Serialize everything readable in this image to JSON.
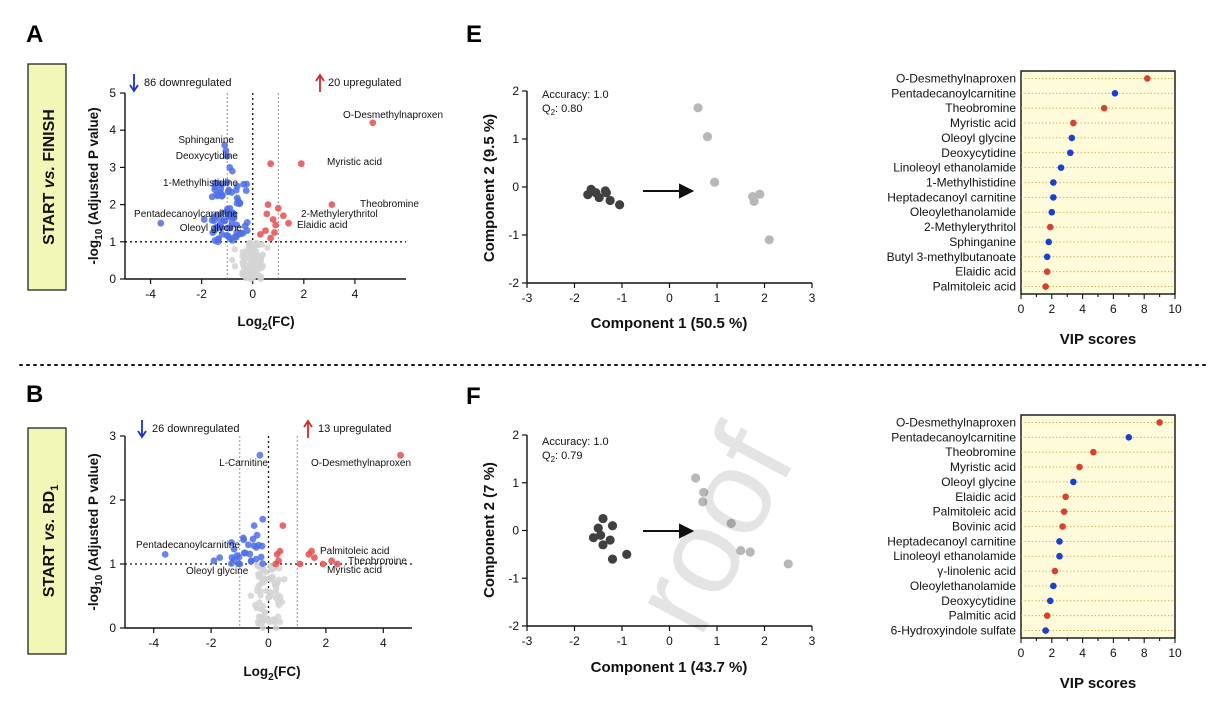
{
  "panels": {
    "A": "A",
    "B": "B",
    "E": "E",
    "F": "F"
  },
  "comparisons": [
    {
      "pre": "START ",
      "vs": "vs.",
      "post": " FINISH",
      "sub": ""
    },
    {
      "pre": "START ",
      "vs": "vs.",
      "post": " RD",
      "sub": "1"
    }
  ],
  "colors": {
    "down": "#4f6fe8",
    "up": "#e54e4e",
    "nonsig": "#d3d3d3",
    "group1": "#404040",
    "group2": "#b8b8b8",
    "vip_red": "#d8402f",
    "vip_blue": "#1b3fcf",
    "vip_bg": "#fdfbd9",
    "label_bg": "#f2f7b7"
  },
  "chart_data": [
    {
      "panel": "A",
      "type": "scatter",
      "xlabel_pre": "Log",
      "xlabel_sub": "2",
      "xlabel_post": "(FC)",
      "ylabel_pre": "-log",
      "ylabel_sub": "10",
      "ylabel_post": " (Adjusted P value)",
      "xlim": [
        -5,
        6
      ],
      "ylim": [
        0,
        5
      ],
      "xticks": [
        -4,
        -2,
        0,
        2,
        4
      ],
      "yticks": [
        0,
        1,
        2,
        3,
        4,
        5
      ],
      "down_label": "86 downregulated",
      "up_label": "20 upregulated",
      "annotations": [
        {
          "text": "O-Desmethylnaproxen",
          "x": 4.7,
          "y": 4.2
        },
        {
          "text": "Myristic acid",
          "x": 1.9,
          "y": 3.1
        },
        {
          "text": "Theobromine",
          "x": 3.1,
          "y": 2.0
        },
        {
          "text": "2-Methylerythritol",
          "x": 1.2,
          "y": 1.7
        },
        {
          "text": "Elaidic acid",
          "x": 0.9,
          "y": 1.45
        },
        {
          "text": "Sphinganine",
          "x": -1.1,
          "y": 3.6
        },
        {
          "text": "Deoxycytidine",
          "x": -1.0,
          "y": 3.3
        },
        {
          "text": "1-Methylhistidine",
          "x": -1.0,
          "y": 2.6
        },
        {
          "text": "Pentadecanoylcarnitine",
          "x": -3.6,
          "y": 1.5
        },
        {
          "text": "Oleoyl glycine",
          "x": -1.3,
          "y": 1.4
        }
      ]
    },
    {
      "panel": "B",
      "type": "scatter",
      "xlabel_pre": "Log",
      "xlabel_sub": "2",
      "xlabel_post": "(FC)",
      "ylabel_pre": "-log",
      "ylabel_sub": "10",
      "ylabel_post": " (Adjusted P value)",
      "xlim": [
        -5,
        5
      ],
      "ylim": [
        0,
        3
      ],
      "xticks": [
        -4,
        -2,
        0,
        2,
        4
      ],
      "yticks": [
        0,
        1,
        2,
        3
      ],
      "down_label": "26 downregulated",
      "up_label": "13 upregulated",
      "annotations": [
        {
          "text": "L-Carnitine",
          "x": -0.3,
          "y": 2.7
        },
        {
          "text": "O-Desmethylnaproxen",
          "x": 4.6,
          "y": 2.7
        },
        {
          "text": "Pentadecanoylcarnitine",
          "x": -3.6,
          "y": 1.15
        },
        {
          "text": "Palmitoleic acid",
          "x": 1.5,
          "y": 1.2
        },
        {
          "text": "Theobromine",
          "x": 2.2,
          "y": 1.05
        },
        {
          "text": "Myristic acid",
          "x": 2.4,
          "y": 1.0
        },
        {
          "text": "Oleoyl glycine",
          "x": -1.0,
          "y": 1.0
        }
      ]
    },
    {
      "panel": "E",
      "type": "scatter",
      "xlabel": "Component 1 (50.5 %)",
      "ylabel": "Component 2 (9.5 %)",
      "xlim": [
        -3,
        3
      ],
      "ylim": [
        -2,
        2
      ],
      "xticks": [
        -3,
        -2,
        -1,
        0,
        1,
        2,
        3
      ],
      "yticks": [
        -2,
        -1,
        0,
        1,
        2
      ],
      "accuracy": "Accuracy: 1.0",
      "q2_pre": "Q",
      "q2_sub": "2",
      "q2_post": ": 0.80",
      "group1": [
        [
          -1.65,
          -0.05
        ],
        [
          -1.55,
          -0.12
        ],
        [
          -1.35,
          -0.08
        ],
        [
          -1.72,
          -0.16
        ],
        [
          -1.48,
          -0.22
        ],
        [
          -1.25,
          -0.28
        ],
        [
          -1.05,
          -0.37
        ],
        [
          -1.33,
          -0.12
        ]
      ],
      "group2": [
        [
          0.6,
          1.65
        ],
        [
          0.8,
          1.05
        ],
        [
          0.95,
          0.1
        ],
        [
          1.75,
          -0.2
        ],
        [
          1.9,
          -0.15
        ],
        [
          1.78,
          -0.3
        ],
        [
          2.1,
          -1.1
        ]
      ]
    },
    {
      "panel": "F",
      "type": "scatter",
      "xlabel": "Component 1 (43.7 %)",
      "ylabel": "Component 2 (7 %)",
      "xlim": [
        -3,
        3
      ],
      "ylim": [
        -2,
        2
      ],
      "xticks": [
        -3,
        -2,
        -1,
        0,
        1,
        2,
        3
      ],
      "yticks": [
        -2,
        -1,
        0,
        1,
        2
      ],
      "accuracy": "Accuracy: 1.0",
      "q2_pre": "Q",
      "q2_sub": "2",
      "q2_post": ": 0.79",
      "group1": [
        [
          -1.4,
          0.25
        ],
        [
          -1.2,
          0.1
        ],
        [
          -1.5,
          0.05
        ],
        [
          -1.6,
          -0.15
        ],
        [
          -1.25,
          -0.2
        ],
        [
          -1.4,
          -0.3
        ],
        [
          -1.2,
          -0.6
        ],
        [
          -0.9,
          -0.5
        ],
        [
          -1.45,
          -0.1
        ]
      ],
      "group2": [
        [
          0.55,
          1.1
        ],
        [
          0.72,
          0.8
        ],
        [
          0.7,
          0.6
        ],
        [
          1.3,
          0.15
        ],
        [
          1.5,
          -0.42
        ],
        [
          1.7,
          -0.45
        ],
        [
          2.5,
          -0.7
        ]
      ]
    },
    {
      "panel": "E-VIP",
      "type": "scatter",
      "xlabel": "VIP scores",
      "xlim": [
        0,
        10
      ],
      "xticks": [
        0,
        1,
        2,
        3,
        4,
        5,
        6,
        7,
        8,
        9,
        10
      ],
      "items": [
        {
          "name": "O-Desmethylnaproxen",
          "vip": 8.2,
          "color": "red"
        },
        {
          "name": "Pentadecanoylcarnitine",
          "vip": 6.1,
          "color": "blue"
        },
        {
          "name": "Theobromine",
          "vip": 5.4,
          "color": "red"
        },
        {
          "name": "Myristic acid",
          "vip": 3.4,
          "color": "red"
        },
        {
          "name": "Oleoyl glycine",
          "vip": 3.3,
          "color": "blue"
        },
        {
          "name": "Deoxycytidine",
          "vip": 3.2,
          "color": "blue"
        },
        {
          "name": "Linoleoyl ethanolamide",
          "vip": 2.6,
          "color": "blue"
        },
        {
          "name": "1-Methylhistidine",
          "vip": 2.1,
          "color": "blue"
        },
        {
          "name": "Heptadecanoyl carnitine",
          "vip": 2.1,
          "color": "blue"
        },
        {
          "name": "Oleoylethanolamide",
          "vip": 2.0,
          "color": "blue"
        },
        {
          "name": "2-Methylerythritol",
          "vip": 1.9,
          "color": "red"
        },
        {
          "name": "Sphinganine",
          "vip": 1.8,
          "color": "blue"
        },
        {
          "name": "Butyl 3-methylbutanoate",
          "vip": 1.7,
          "color": "blue"
        },
        {
          "name": "Elaidic acid",
          "vip": 1.7,
          "color": "red"
        },
        {
          "name": "Palmitoleic acid",
          "vip": 1.6,
          "color": "red"
        }
      ]
    },
    {
      "panel": "F-VIP",
      "type": "scatter",
      "xlabel": "VIP scores",
      "xlim": [
        0,
        10
      ],
      "xticks": [
        0,
        1,
        2,
        3,
        4,
        5,
        6,
        7,
        8,
        9,
        10
      ],
      "items": [
        {
          "name": "O-Desmethylnaproxen",
          "vip": 9.0,
          "color": "red"
        },
        {
          "name": "Pentadecanoylcarnitine",
          "vip": 7.0,
          "color": "blue"
        },
        {
          "name": "Theobromine",
          "vip": 4.7,
          "color": "red"
        },
        {
          "name": "Myristic acid",
          "vip": 3.8,
          "color": "red"
        },
        {
          "name": "Oleoyl glycine",
          "vip": 3.4,
          "color": "blue"
        },
        {
          "name": "Elaidic acid",
          "vip": 2.9,
          "color": "red"
        },
        {
          "name": "Palmitoleic acid",
          "vip": 2.8,
          "color": "red"
        },
        {
          "name": "Bovinic acid",
          "vip": 2.7,
          "color": "red"
        },
        {
          "name": "Heptadecanoyl carnitine",
          "vip": 2.5,
          "color": "blue"
        },
        {
          "name": "Linoleoyl ethanolamide",
          "vip": 2.5,
          "color": "blue"
        },
        {
          "name": "γ-linolenic acid",
          "vip": 2.2,
          "color": "red"
        },
        {
          "name": "Oleoylethanolamide",
          "vip": 2.1,
          "color": "blue"
        },
        {
          "name": "Deoxycytidine",
          "vip": 1.9,
          "color": "blue"
        },
        {
          "name": "Palmitic acid",
          "vip": 1.7,
          "color": "red"
        },
        {
          "name": "6-Hydroxyindole sulfate",
          "vip": 1.6,
          "color": "blue"
        }
      ]
    }
  ]
}
